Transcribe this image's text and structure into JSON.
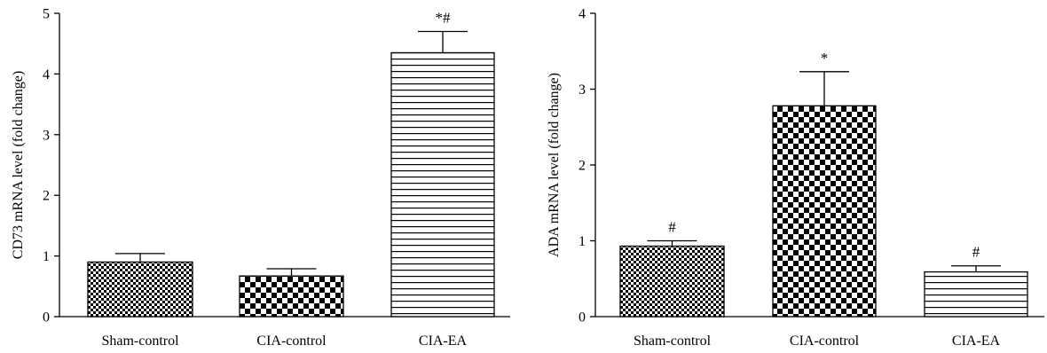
{
  "chart_data": [
    {
      "type": "bar",
      "categories": [
        "Sham-control",
        "CIA-control",
        "CIA-EA"
      ],
      "values": [
        0.9,
        0.67,
        4.35
      ],
      "errors": [
        0.14,
        0.12,
        0.35
      ],
      "annotations": [
        "",
        "",
        "*#"
      ],
      "patterns": [
        "fine-check",
        "check",
        "hstripe"
      ],
      "title": "",
      "xlabel": "",
      "ylabel": "CD73 mRNA level (fold change)",
      "ylim": [
        0,
        5
      ],
      "yticks": [
        0,
        1,
        2,
        3,
        4,
        5
      ],
      "grid": false
    },
    {
      "type": "bar",
      "categories": [
        "Sham-control",
        "CIA-control",
        "CIA-EA"
      ],
      "values": [
        0.93,
        2.78,
        0.59
      ],
      "errors": [
        0.07,
        0.45,
        0.08
      ],
      "annotations": [
        "#",
        "*",
        "#"
      ],
      "patterns": [
        "fine-check",
        "check",
        "hstripe"
      ],
      "title": "",
      "xlabel": "",
      "ylabel": "ADA mRNA level (fold change)",
      "ylim": [
        0,
        4
      ],
      "yticks": [
        0,
        1,
        2,
        3,
        4
      ],
      "grid": false
    }
  ]
}
